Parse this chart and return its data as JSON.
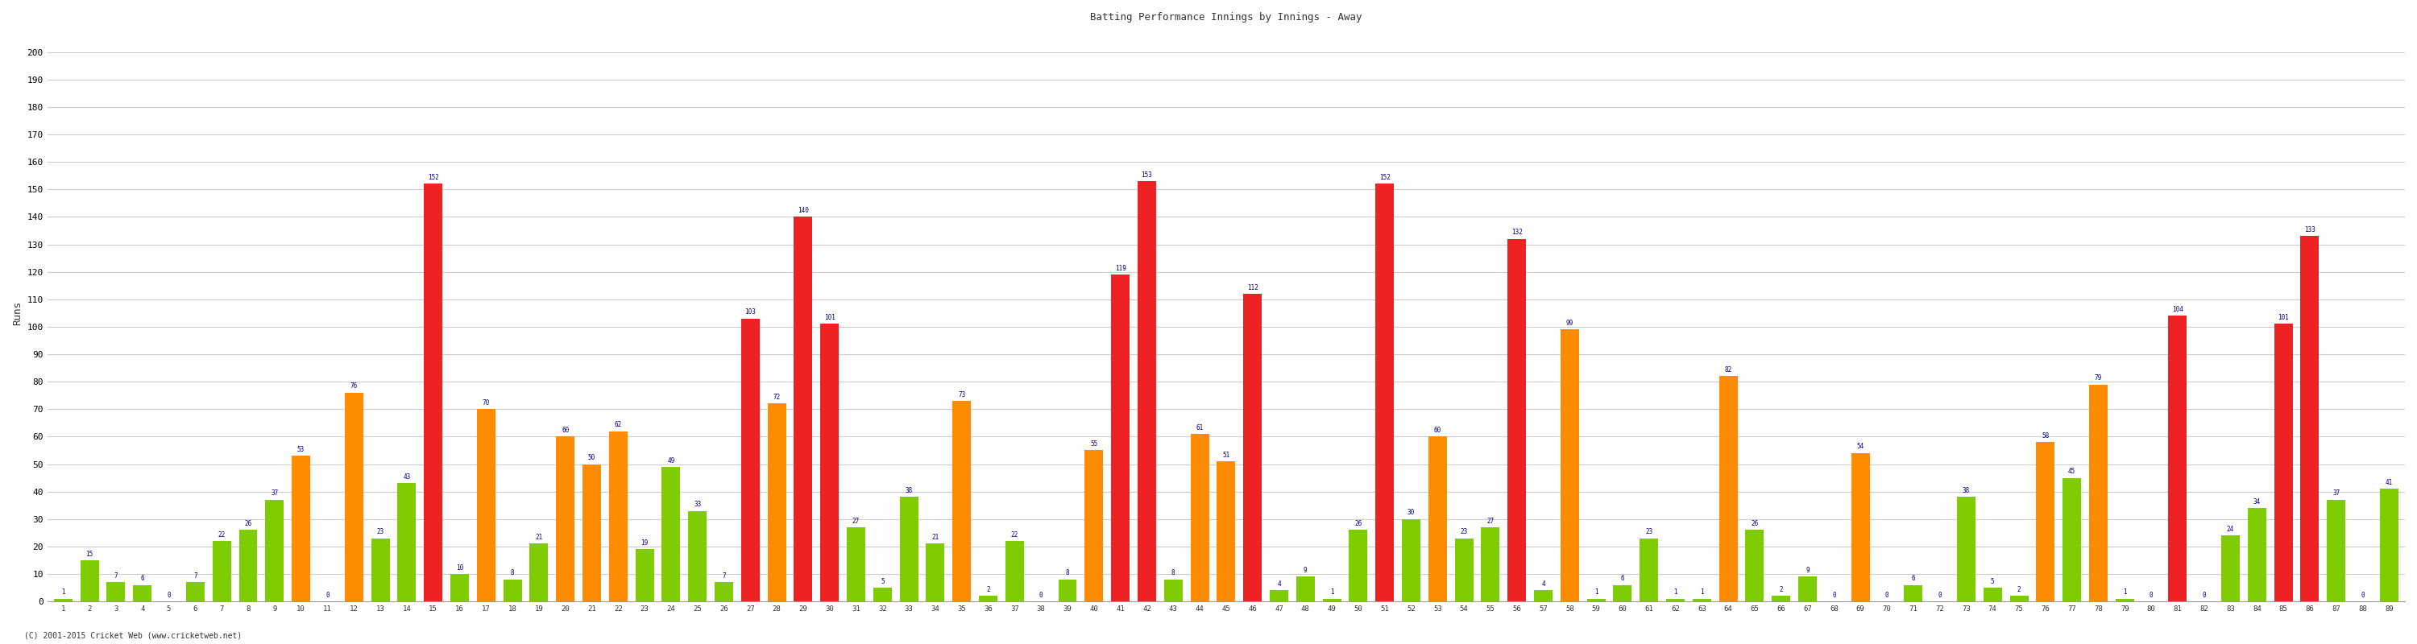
{
  "title": "Batting Performance Innings by Innings - Away",
  "ylabel": "Runs",
  "footer": "(C) 2001-2015 Cricket Web (www.cricketweb.net)",
  "ylim": [
    0,
    210
  ],
  "yticks": [
    0,
    10,
    20,
    30,
    40,
    50,
    60,
    70,
    80,
    90,
    100,
    110,
    120,
    130,
    140,
    150,
    160,
    170,
    180,
    190,
    200
  ],
  "innings": [
    {
      "inning": 1,
      "runs": 1,
      "color": "green"
    },
    {
      "inning": 2,
      "runs": 15,
      "color": "green"
    },
    {
      "inning": 3,
      "runs": 7,
      "color": "green"
    },
    {
      "inning": 4,
      "runs": 6,
      "color": "green"
    },
    {
      "inning": 5,
      "runs": 0,
      "color": "green"
    },
    {
      "inning": 6,
      "runs": 7,
      "color": "green"
    },
    {
      "inning": 7,
      "runs": 22,
      "color": "green"
    },
    {
      "inning": 8,
      "runs": 26,
      "color": "green"
    },
    {
      "inning": 9,
      "runs": 37,
      "color": "green"
    },
    {
      "inning": 10,
      "runs": 53,
      "color": "orange"
    },
    {
      "inning": 11,
      "runs": 0,
      "color": "green"
    },
    {
      "inning": 12,
      "runs": 76,
      "color": "orange"
    },
    {
      "inning": 13,
      "runs": 23,
      "color": "green"
    },
    {
      "inning": 14,
      "runs": 43,
      "color": "green"
    },
    {
      "inning": 15,
      "runs": 152,
      "color": "red"
    },
    {
      "inning": 16,
      "runs": 10,
      "color": "green"
    },
    {
      "inning": 17,
      "runs": 70,
      "color": "orange"
    },
    {
      "inning": 18,
      "runs": 8,
      "color": "green"
    },
    {
      "inning": 19,
      "runs": 21,
      "color": "green"
    },
    {
      "inning": 20,
      "runs": 60,
      "color": "orange"
    },
    {
      "inning": 21,
      "runs": 50,
      "color": "orange"
    },
    {
      "inning": 22,
      "runs": 62,
      "color": "orange"
    },
    {
      "inning": 23,
      "runs": 19,
      "color": "green"
    },
    {
      "inning": 24,
      "runs": 49,
      "color": "green"
    },
    {
      "inning": 25,
      "runs": 33,
      "color": "green"
    },
    {
      "inning": 26,
      "runs": 7,
      "color": "green"
    },
    {
      "inning": 27,
      "runs": 103,
      "color": "red"
    },
    {
      "inning": 28,
      "runs": 72,
      "color": "orange"
    },
    {
      "inning": 29,
      "runs": 140,
      "color": "red"
    },
    {
      "inning": 30,
      "runs": 101,
      "color": "red"
    },
    {
      "inning": 31,
      "runs": 27,
      "color": "green"
    },
    {
      "inning": 32,
      "runs": 5,
      "color": "green"
    },
    {
      "inning": 33,
      "runs": 38,
      "color": "green"
    },
    {
      "inning": 34,
      "runs": 21,
      "color": "green"
    },
    {
      "inning": 35,
      "runs": 73,
      "color": "orange"
    },
    {
      "inning": 36,
      "runs": 2,
      "color": "green"
    },
    {
      "inning": 37,
      "runs": 22,
      "color": "green"
    },
    {
      "inning": 38,
      "runs": 0,
      "color": "green"
    },
    {
      "inning": 39,
      "runs": 8,
      "color": "green"
    },
    {
      "inning": 40,
      "runs": 55,
      "color": "orange"
    },
    {
      "inning": 41,
      "runs": 119,
      "color": "red"
    },
    {
      "inning": 42,
      "runs": 153,
      "color": "red"
    },
    {
      "inning": 43,
      "runs": 8,
      "color": "green"
    },
    {
      "inning": 44,
      "runs": 61,
      "color": "orange"
    },
    {
      "inning": 45,
      "runs": 51,
      "color": "orange"
    },
    {
      "inning": 46,
      "runs": 112,
      "color": "red"
    },
    {
      "inning": 47,
      "runs": 4,
      "color": "green"
    },
    {
      "inning": 48,
      "runs": 9,
      "color": "green"
    },
    {
      "inning": 49,
      "runs": 1,
      "color": "green"
    },
    {
      "inning": 50,
      "runs": 26,
      "color": "green"
    },
    {
      "inning": 51,
      "runs": 152,
      "color": "red"
    },
    {
      "inning": 52,
      "runs": 30,
      "color": "green"
    },
    {
      "inning": 53,
      "runs": 60,
      "color": "orange"
    },
    {
      "inning": 54,
      "runs": 23,
      "color": "green"
    },
    {
      "inning": 55,
      "runs": 27,
      "color": "green"
    },
    {
      "inning": 56,
      "runs": 132,
      "color": "red"
    },
    {
      "inning": 57,
      "runs": 4,
      "color": "green"
    },
    {
      "inning": 58,
      "runs": 99,
      "color": "orange"
    },
    {
      "inning": 59,
      "runs": 1,
      "color": "green"
    },
    {
      "inning": 60,
      "runs": 6,
      "color": "green"
    },
    {
      "inning": 61,
      "runs": 23,
      "color": "green"
    },
    {
      "inning": 62,
      "runs": 1,
      "color": "green"
    },
    {
      "inning": 63,
      "runs": 1,
      "color": "green"
    },
    {
      "inning": 64,
      "runs": 82,
      "color": "orange"
    },
    {
      "inning": 65,
      "runs": 26,
      "color": "green"
    },
    {
      "inning": 66,
      "runs": 2,
      "color": "green"
    },
    {
      "inning": 67,
      "runs": 9,
      "color": "green"
    },
    {
      "inning": 68,
      "runs": 0,
      "color": "green"
    },
    {
      "inning": 69,
      "runs": 54,
      "color": "orange"
    },
    {
      "inning": 70,
      "runs": 0,
      "color": "green"
    },
    {
      "inning": 71,
      "runs": 6,
      "color": "green"
    },
    {
      "inning": 72,
      "runs": 0,
      "color": "green"
    },
    {
      "inning": 73,
      "runs": 38,
      "color": "green"
    },
    {
      "inning": 74,
      "runs": 5,
      "color": "green"
    },
    {
      "inning": 75,
      "runs": 2,
      "color": "green"
    },
    {
      "inning": 76,
      "runs": 58,
      "color": "orange"
    },
    {
      "inning": 77,
      "runs": 45,
      "color": "green"
    },
    {
      "inning": 78,
      "runs": 79,
      "color": "orange"
    },
    {
      "inning": 79,
      "runs": 1,
      "color": "green"
    },
    {
      "inning": 80,
      "runs": 0,
      "color": "green"
    },
    {
      "inning": 81,
      "runs": 104,
      "color": "red"
    },
    {
      "inning": 82,
      "runs": 0,
      "color": "green"
    },
    {
      "inning": 83,
      "runs": 24,
      "color": "green"
    },
    {
      "inning": 84,
      "runs": 34,
      "color": "green"
    },
    {
      "inning": 85,
      "runs": 101,
      "color": "red"
    },
    {
      "inning": 86,
      "runs": 133,
      "color": "red"
    },
    {
      "inning": 87,
      "runs": 37,
      "color": "green"
    },
    {
      "inning": 88,
      "runs": 0,
      "color": "green"
    },
    {
      "inning": 89,
      "runs": 41,
      "color": "green"
    }
  ],
  "color_map": {
    "green": "#7FCC00",
    "orange": "#FF8C00",
    "red": "#EE2222"
  },
  "bg_color": "#FFFFFF",
  "grid_color": "#CCCCCC",
  "label_color": "#00008B",
  "bar_width": 0.7
}
